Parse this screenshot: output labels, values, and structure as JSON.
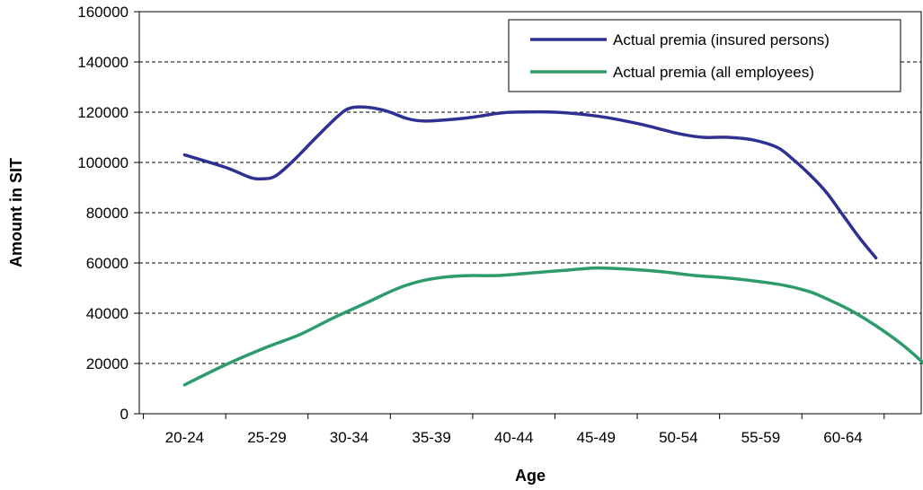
{
  "chart_data": {
    "type": "line",
    "xlabel": "Age",
    "ylabel": "Amount in SIT",
    "categories": [
      "20-24",
      "25-29",
      "30-34",
      "35-39",
      "40-44",
      "45-49",
      "50-54",
      "55-59",
      "60-64"
    ],
    "ylim": [
      0,
      160000
    ],
    "yticks": [
      0,
      20000,
      40000,
      60000,
      80000,
      100000,
      120000,
      140000,
      160000
    ],
    "grid": "horizontal-dashed",
    "legend_position": "top-right",
    "series": [
      {
        "name": "Actual premia (insured persons)",
        "color": "#2E3192",
        "points": [
          [
            0,
            103000
          ],
          [
            0.5,
            98000
          ],
          [
            0.8,
            94000
          ],
          [
            0.95,
            93500
          ],
          [
            1.1,
            94500
          ],
          [
            1.3,
            100000
          ],
          [
            1.6,
            110000
          ],
          [
            1.85,
            118000
          ],
          [
            2.0,
            121500
          ],
          [
            2.2,
            122000
          ],
          [
            2.45,
            120500
          ],
          [
            2.7,
            117500
          ],
          [
            2.9,
            116500
          ],
          [
            3.2,
            117000
          ],
          [
            3.5,
            118000
          ],
          [
            3.8,
            119500
          ],
          [
            4.0,
            120000
          ],
          [
            4.5,
            120000
          ],
          [
            5.0,
            118500
          ],
          [
            5.5,
            115500
          ],
          [
            6.0,
            111500
          ],
          [
            6.3,
            110000
          ],
          [
            6.6,
            110000
          ],
          [
            6.9,
            109000
          ],
          [
            7.2,
            106000
          ],
          [
            7.4,
            101000
          ],
          [
            7.6,
            95000
          ],
          [
            7.8,
            88000
          ],
          [
            8.0,
            79000
          ],
          [
            8.2,
            70000
          ],
          [
            8.4,
            62000
          ]
        ]
      },
      {
        "name": "Actual premia (all employees)",
        "color": "#2E9C6A",
        "points": [
          [
            0,
            11500
          ],
          [
            0.5,
            19500
          ],
          [
            1.0,
            26500
          ],
          [
            1.4,
            31500
          ],
          [
            1.8,
            38000
          ],
          [
            2.2,
            44000
          ],
          [
            2.6,
            50000
          ],
          [
            2.9,
            53000
          ],
          [
            3.2,
            54500
          ],
          [
            3.5,
            55000
          ],
          [
            3.8,
            55000
          ],
          [
            4.2,
            56000
          ],
          [
            4.6,
            57000
          ],
          [
            5.0,
            58000
          ],
          [
            5.4,
            57500
          ],
          [
            5.8,
            56500
          ],
          [
            6.2,
            55000
          ],
          [
            6.6,
            54000
          ],
          [
            7.0,
            52500
          ],
          [
            7.3,
            51000
          ],
          [
            7.6,
            48500
          ],
          [
            7.85,
            45000
          ],
          [
            8.1,
            41000
          ],
          [
            8.4,
            35000
          ],
          [
            8.7,
            28000
          ],
          [
            8.95,
            21000
          ],
          [
            9.2,
            13500
          ]
        ]
      }
    ]
  }
}
